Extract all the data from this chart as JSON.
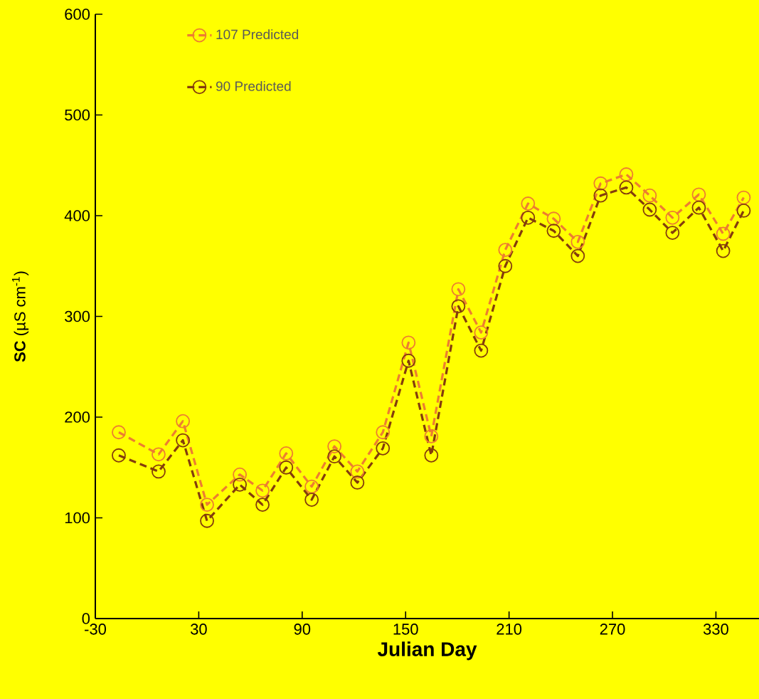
{
  "chart_data": {
    "type": "line",
    "xlabel": "Julian Day",
    "ylabel": "**SC** (µS cm$^{-1}$)",
    "x": [
      -16.4,
      6.7,
      20.8,
      34.8,
      53.8,
      67,
      80.7,
      95.5,
      108.7,
      122,
      136.8,
      151.7,
      164.9,
      180.6,
      193.8,
      207.8,
      221,
      235.9,
      249.9,
      263.1,
      278,
      291.6,
      304.8,
      320.1,
      334.2,
      346.1
    ],
    "series": [
      {
        "name": "107 Predicted",
        "color": "#ed7d31",
        "values": [
          185,
          163,
          196,
          113,
          143,
          127,
          164,
          131,
          171,
          146,
          185,
          274,
          181,
          327,
          284,
          366,
          412,
          397,
          374,
          432,
          441,
          420,
          398,
          421,
          382,
          418
        ]
      },
      {
        "name": "90 Predicted",
        "color": "#843c0c",
        "values": [
          162,
          146,
          177,
          97,
          133,
          113,
          150,
          118,
          161,
          135,
          169,
          256,
          162,
          310,
          266,
          350,
          398,
          385,
          360,
          420,
          428,
          406,
          383,
          408,
          365,
          405
        ]
      }
    ],
    "xlim": [
      -30,
      355
    ],
    "xticks": [
      -30,
      30,
      90,
      150,
      210,
      270,
      330
    ],
    "ylim": [
      0,
      600
    ],
    "yticks": [
      0,
      100,
      200,
      300,
      400,
      500,
      600
    ],
    "grid": false,
    "legend": "top left",
    "marker": "circle",
    "line_style": "dashed"
  }
}
